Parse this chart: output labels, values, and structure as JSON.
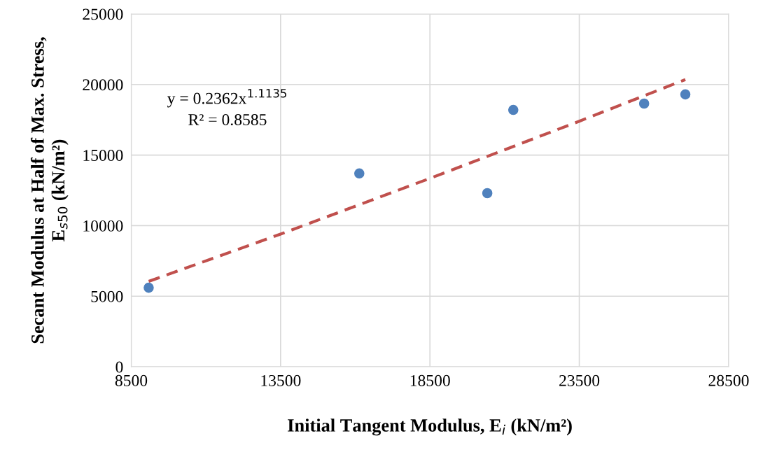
{
  "chart_data": {
    "type": "scatter",
    "xlabel": "Initial Tangent Modulus, E$_{i}$ (kN/m²)",
    "ylabel": "Secant Modulus at Half of Max. Stress,\nE$_{s50}$ (kN/m²)",
    "series": [
      {
        "color": "#4f81bd",
        "marker": "circle",
        "x": [
          9085,
          16135,
          20420,
          21290,
          25670,
          27050
        ],
        "values": [
          5600,
          13700,
          12300,
          18200,
          18650,
          19300
        ]
      },
      {
        "type": "line",
        "color": "#c0504d",
        "line_style": "dashed",
        "marker": "none",
        "x": [
          9085,
          13500,
          18500,
          23500,
          27050
        ],
        "values": [
          6050,
          9400,
          13350,
          17400,
          20350
        ]
      }
    ],
    "annotations": [
      "y = 0.2362x$^{1.1135}$",
      "R² = 0.8585"
    ],
    "xlim": [
      8500,
      28500
    ],
    "xticks": [
      8500,
      13500,
      18500,
      23500,
      28500
    ],
    "ylim": [
      0,
      25000
    ],
    "yticks": [
      0,
      5000,
      10000,
      15000,
      20000,
      25000
    ],
    "grid": true,
    "legend": false
  }
}
